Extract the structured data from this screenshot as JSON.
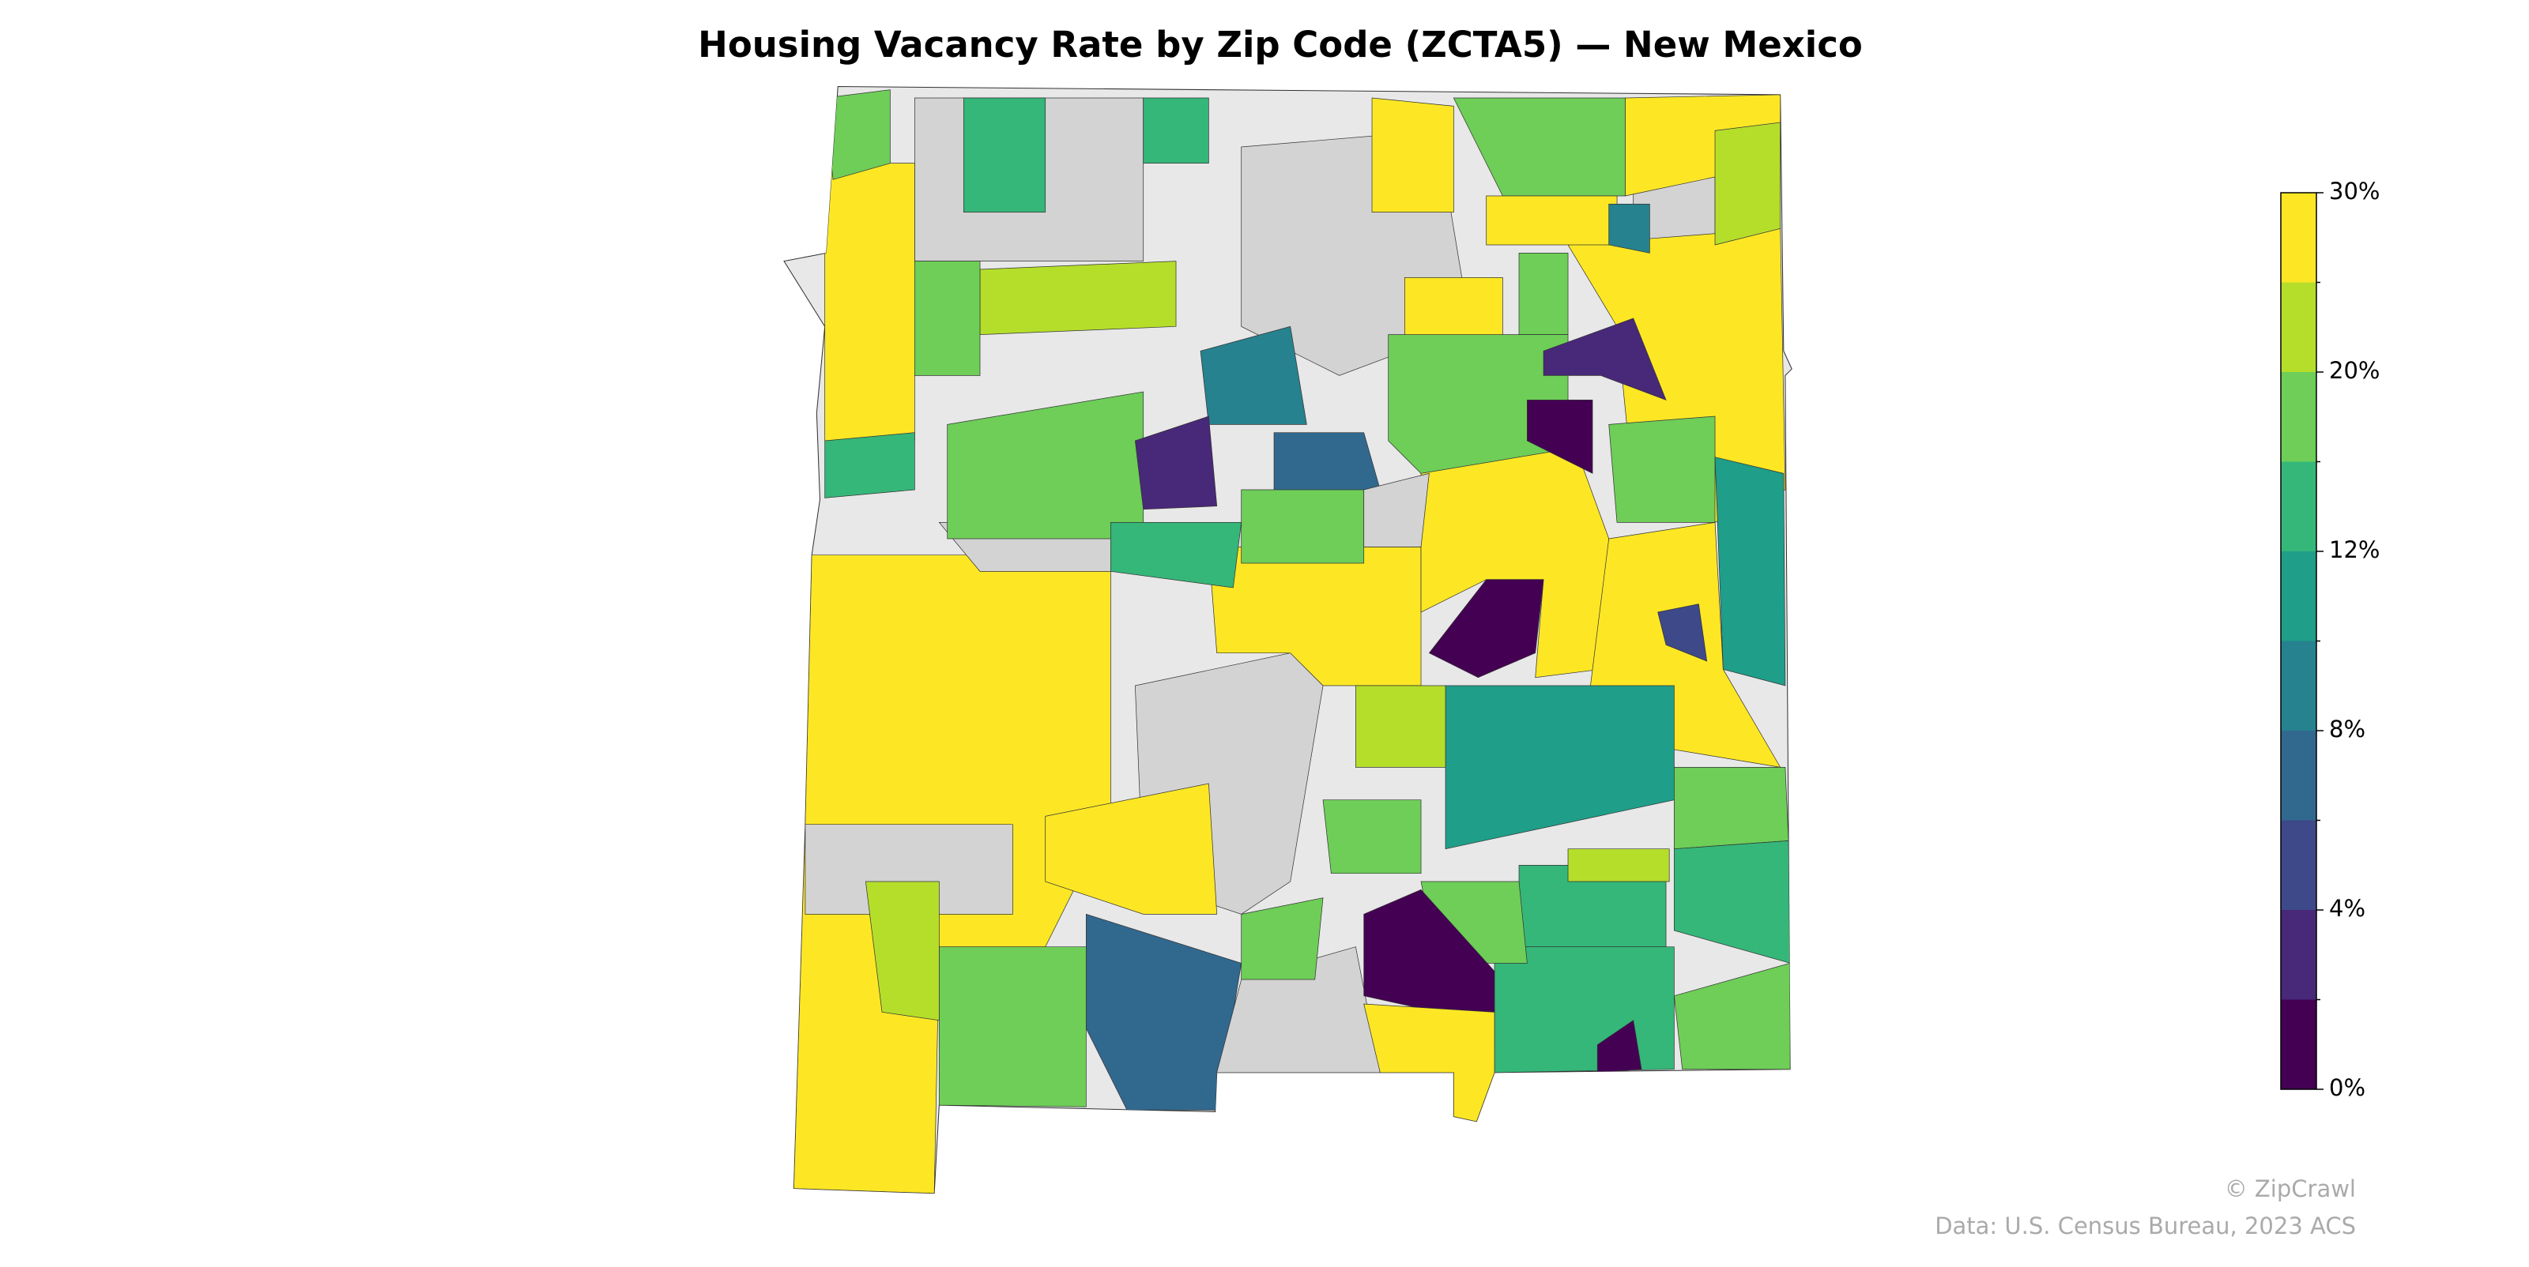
{
  "chart_data": {
    "type": "choropleth",
    "title": "Housing Vacancy Rate by Zip Code (ZCTA5) — New Mexico",
    "colorbar": {
      "boundaries": [
        0,
        2,
        4,
        6,
        8,
        10,
        12,
        16,
        20,
        25,
        30
      ],
      "colors": [
        "#440154",
        "#482878",
        "#3e4989",
        "#31688e",
        "#26828e",
        "#1f9e89",
        "#35b779",
        "#6ece58",
        "#b5de2b",
        "#fde725"
      ],
      "ticks": [
        {
          "value": 0,
          "label": "0%"
        },
        {
          "value": 4,
          "label": "4%"
        },
        {
          "value": 8,
          "label": "8%"
        },
        {
          "value": 12,
          "label": "12%"
        },
        {
          "value": 20,
          "label": "20%"
        },
        {
          "value": 30,
          "label": "30%"
        }
      ]
    }
  },
  "footer": {
    "credit": "© ZipCrawl",
    "source": "Data: U.S. Census Bureau, 2023 ACS"
  }
}
